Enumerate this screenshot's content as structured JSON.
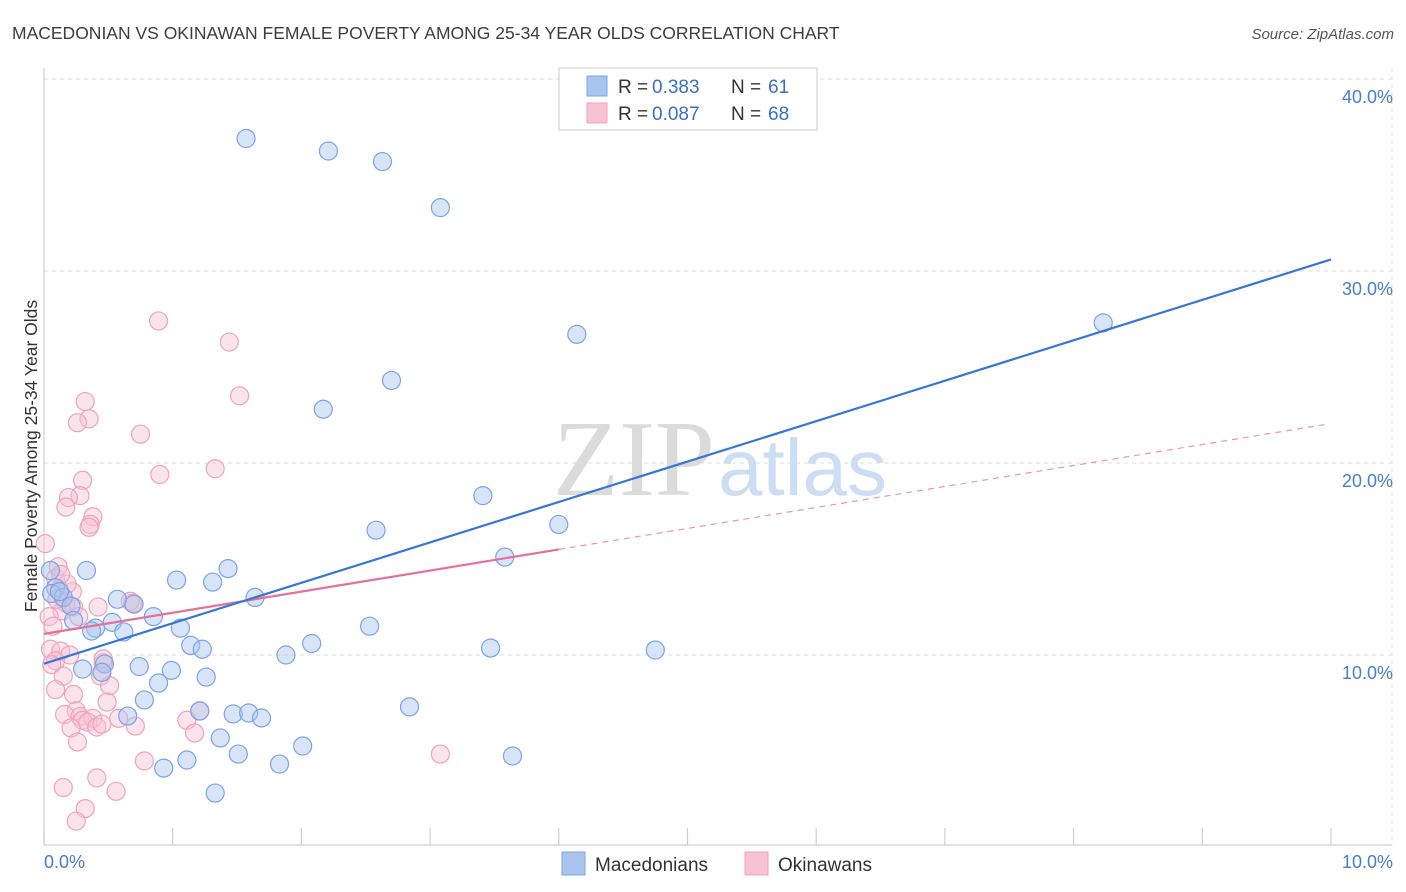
{
  "chart_data": {
    "type": "scatter",
    "title": "MACEDONIAN VS OKINAWAN FEMALE POVERTY AMONG 25-34 YEAR OLDS CORRELATION CHART",
    "source": "Source: ZipAtlas.com",
    "ylabel": "Female Poverty Among 25-34 Year Olds",
    "xlim": [
      0,
      10
    ],
    "ylim": [
      0,
      40
    ],
    "x_ticks": [
      0,
      1,
      2,
      3,
      4,
      5,
      6,
      7,
      8,
      9,
      10
    ],
    "x_tick_labels": [
      {
        "value": 0,
        "label": "0.0%"
      },
      {
        "value": 10,
        "label": "10.0%"
      }
    ],
    "y_ticks": [
      {
        "value": 10,
        "label": "10.0%"
      },
      {
        "value": 20,
        "label": "20.0%"
      },
      {
        "value": 30,
        "label": "30.0%"
      },
      {
        "value": 40,
        "label": "40.0%"
      }
    ],
    "grid": true,
    "legend": "top-center",
    "legend_labels": {
      "r_prefix": "R =",
      "n_prefix": "N ="
    },
    "series": [
      {
        "name": "Macedonians",
        "stroke": "#7ba4e4",
        "fill": "#a8c5f0",
        "line_color": "#3876d4",
        "R": "0.383",
        "N": "61",
        "points": [
          [
            1.57,
            36.9
          ],
          [
            2.21,
            36.25
          ],
          [
            2.63,
            35.7
          ],
          [
            3.08,
            33.3
          ],
          [
            4.14,
            26.7
          ],
          [
            8.23,
            27.3
          ],
          [
            2.7,
            24.3
          ],
          [
            2.17,
            22.8
          ],
          [
            3.41,
            18.3
          ],
          [
            4.0,
            16.8
          ],
          [
            2.58,
            16.5
          ],
          [
            3.58,
            15.1
          ],
          [
            0.33,
            14.4
          ],
          [
            1.43,
            14.5
          ],
          [
            1.03,
            13.9
          ],
          [
            1.31,
            13.8
          ],
          [
            0.05,
            14.4
          ],
          [
            0.09,
            13.5
          ],
          [
            0.06,
            13.2
          ],
          [
            0.15,
            13.0
          ],
          [
            0.57,
            12.9
          ],
          [
            0.7,
            12.65
          ],
          [
            1.64,
            13.0
          ],
          [
            0.21,
            12.55
          ],
          [
            0.85,
            12.0
          ],
          [
            0.23,
            11.8
          ],
          [
            0.4,
            11.4
          ],
          [
            0.37,
            11.25
          ],
          [
            0.53,
            11.7
          ],
          [
            0.62,
            11.2
          ],
          [
            1.06,
            11.4
          ],
          [
            2.53,
            11.5
          ],
          [
            2.08,
            10.6
          ],
          [
            1.14,
            10.5
          ],
          [
            1.23,
            10.3
          ],
          [
            1.88,
            10.0
          ],
          [
            3.47,
            10.36
          ],
          [
            4.75,
            10.26
          ],
          [
            0.47,
            9.53
          ],
          [
            0.3,
            9.27
          ],
          [
            0.74,
            9.4
          ],
          [
            0.99,
            9.2
          ],
          [
            0.45,
            9.1
          ],
          [
            1.26,
            8.85
          ],
          [
            0.89,
            8.54
          ],
          [
            0.78,
            7.66
          ],
          [
            2.84,
            7.3
          ],
          [
            0.65,
            6.82
          ],
          [
            1.21,
            7.08
          ],
          [
            1.47,
            6.93
          ],
          [
            1.59,
            6.98
          ],
          [
            1.69,
            6.72
          ],
          [
            1.37,
            5.68
          ],
          [
            2.01,
            5.26
          ],
          [
            1.51,
            4.84
          ],
          [
            1.11,
            4.53
          ],
          [
            3.64,
            4.74
          ],
          [
            0.93,
            4.11
          ],
          [
            1.83,
            4.32
          ],
          [
            1.33,
            2.81
          ],
          [
            0.12,
            13.3
          ]
        ],
        "trend": {
          "solid": [
            [
              0,
              9.55
            ],
            [
              10,
              30.6
            ]
          ]
        }
      },
      {
        "name": "Okinawans",
        "stroke": "#f0a2bd",
        "fill": "#f7c3d4",
        "line_color": "#e5709a",
        "R": "0.087",
        "N": "68",
        "points": [
          [
            0.89,
            27.4
          ],
          [
            1.44,
            26.3
          ],
          [
            1.52,
            23.5
          ],
          [
            0.32,
            23.2
          ],
          [
            0.35,
            22.3
          ],
          [
            0.26,
            22.1
          ],
          [
            0.75,
            21.5
          ],
          [
            1.33,
            19.7
          ],
          [
            0.9,
            19.4
          ],
          [
            0.3,
            19.1
          ],
          [
            0.28,
            18.3
          ],
          [
            0.19,
            18.2
          ],
          [
            0.17,
            17.7
          ],
          [
            0.38,
            17.2
          ],
          [
            0.36,
            16.8
          ],
          [
            0.35,
            16.65
          ],
          [
            0.01,
            15.8
          ],
          [
            0.09,
            14.0
          ],
          [
            0.11,
            14.6
          ],
          [
            0.69,
            12.7
          ],
          [
            0.12,
            13.4
          ],
          [
            0.22,
            13.3
          ],
          [
            0.17,
            12.7
          ],
          [
            0.23,
            12.5
          ],
          [
            0.14,
            12.3
          ],
          [
            0.04,
            12.0
          ],
          [
            0.05,
            10.3
          ],
          [
            0.13,
            10.2
          ],
          [
            0.09,
            9.7
          ],
          [
            0.06,
            9.5
          ],
          [
            0.46,
            9.6
          ],
          [
            0.15,
            8.9
          ],
          [
            0.44,
            8.9
          ],
          [
            0.09,
            8.2
          ],
          [
            0.51,
            8.4
          ],
          [
            0.23,
            7.95
          ],
          [
            0.49,
            7.55
          ],
          [
            1.21,
            7.1
          ],
          [
            0.25,
            7.1
          ],
          [
            0.16,
            6.9
          ],
          [
            0.28,
            6.8
          ],
          [
            0.38,
            6.7
          ],
          [
            0.3,
            6.6
          ],
          [
            0.58,
            6.7
          ],
          [
            1.11,
            6.6
          ],
          [
            0.34,
            6.5
          ],
          [
            0.41,
            6.25
          ],
          [
            0.45,
            6.4
          ],
          [
            0.71,
            6.3
          ],
          [
            0.21,
            6.2
          ],
          [
            1.17,
            5.94
          ],
          [
            0.26,
            5.47
          ],
          [
            3.08,
            4.84
          ],
          [
            0.78,
            4.48
          ],
          [
            0.41,
            3.6
          ],
          [
            0.15,
            3.1
          ],
          [
            0.56,
            2.9
          ],
          [
            0.32,
            2.0
          ],
          [
            0.25,
            1.35
          ],
          [
            0.67,
            12.8
          ],
          [
            0.42,
            12.5
          ],
          [
            0.18,
            13.7
          ],
          [
            0.1,
            12.9
          ],
          [
            0.46,
            9.8
          ],
          [
            0.07,
            11.5
          ],
          [
            0.2,
            10.0
          ],
          [
            0.27,
            12.0
          ],
          [
            0.13,
            14.2
          ]
        ],
        "trend": {
          "solid": [
            [
              0,
              11.1
            ],
            [
              4.0,
              15.5
            ]
          ],
          "dashed": [
            [
              4.0,
              15.5
            ],
            [
              9.95,
              22.0
            ]
          ]
        }
      }
    ]
  },
  "watermark": {
    "zip": "ZIP",
    "atlas": "atlas"
  }
}
